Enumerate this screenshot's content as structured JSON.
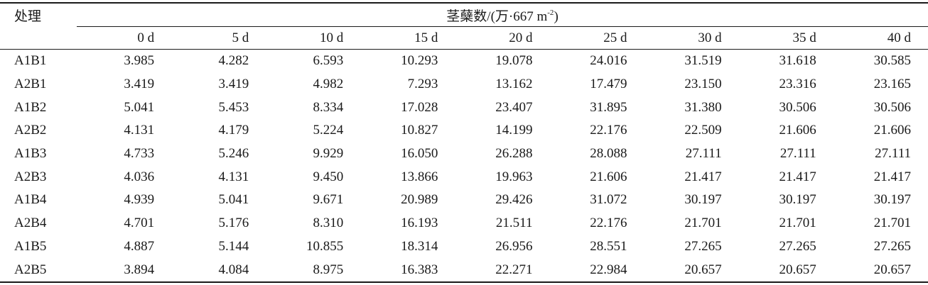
{
  "table": {
    "treatment_header": "处理",
    "group_header": {
      "main": "茎蘖数/(万·667 m",
      "superscript": "-2",
      "close": ")"
    },
    "columns": [
      "0 d",
      "5 d",
      "10 d",
      "15 d",
      "20 d",
      "25 d",
      "30 d",
      "35 d",
      "40 d"
    ],
    "rows": [
      {
        "treatment": "A1B1",
        "values": [
          "3.985",
          "4.282",
          "6.593",
          "10.293",
          "19.078",
          "24.016",
          "31.519",
          "31.618",
          "30.585"
        ]
      },
      {
        "treatment": "A2B1",
        "values": [
          "3.419",
          "3.419",
          "4.982",
          "7.293",
          "13.162",
          "17.479",
          "23.150",
          "23.316",
          "23.165"
        ]
      },
      {
        "treatment": "A1B2",
        "values": [
          "5.041",
          "5.453",
          "8.334",
          "17.028",
          "23.407",
          "31.895",
          "31.380",
          "30.506",
          "30.506"
        ]
      },
      {
        "treatment": "A2B2",
        "values": [
          "4.131",
          "4.179",
          "5.224",
          "10.827",
          "14.199",
          "22.176",
          "22.509",
          "21.606",
          "21.606"
        ]
      },
      {
        "treatment": "A1B3",
        "values": [
          "4.733",
          "5.246",
          "9.929",
          "16.050",
          "26.288",
          "28.088",
          "27.111",
          "27.111",
          "27.111"
        ]
      },
      {
        "treatment": "A2B3",
        "values": [
          "4.036",
          "4.131",
          "9.450",
          "13.866",
          "19.963",
          "21.606",
          "21.417",
          "21.417",
          "21.417"
        ]
      },
      {
        "treatment": "A1B4",
        "values": [
          "4.939",
          "5.041",
          "9.671",
          "20.989",
          "29.426",
          "31.072",
          "30.197",
          "30.197",
          "30.197"
        ]
      },
      {
        "treatment": "A2B4",
        "values": [
          "4.701",
          "5.176",
          "8.310",
          "16.193",
          "21.511",
          "22.176",
          "21.701",
          "21.701",
          "21.701"
        ]
      },
      {
        "treatment": "A1B5",
        "values": [
          "4.887",
          "5.144",
          "10.855",
          "18.314",
          "26.956",
          "28.551",
          "27.265",
          "27.265",
          "27.265"
        ]
      },
      {
        "treatment": "A2B5",
        "values": [
          "3.894",
          "4.084",
          "8.975",
          "16.383",
          "22.271",
          "22.984",
          "20.657",
          "20.657",
          "20.657"
        ]
      }
    ]
  }
}
